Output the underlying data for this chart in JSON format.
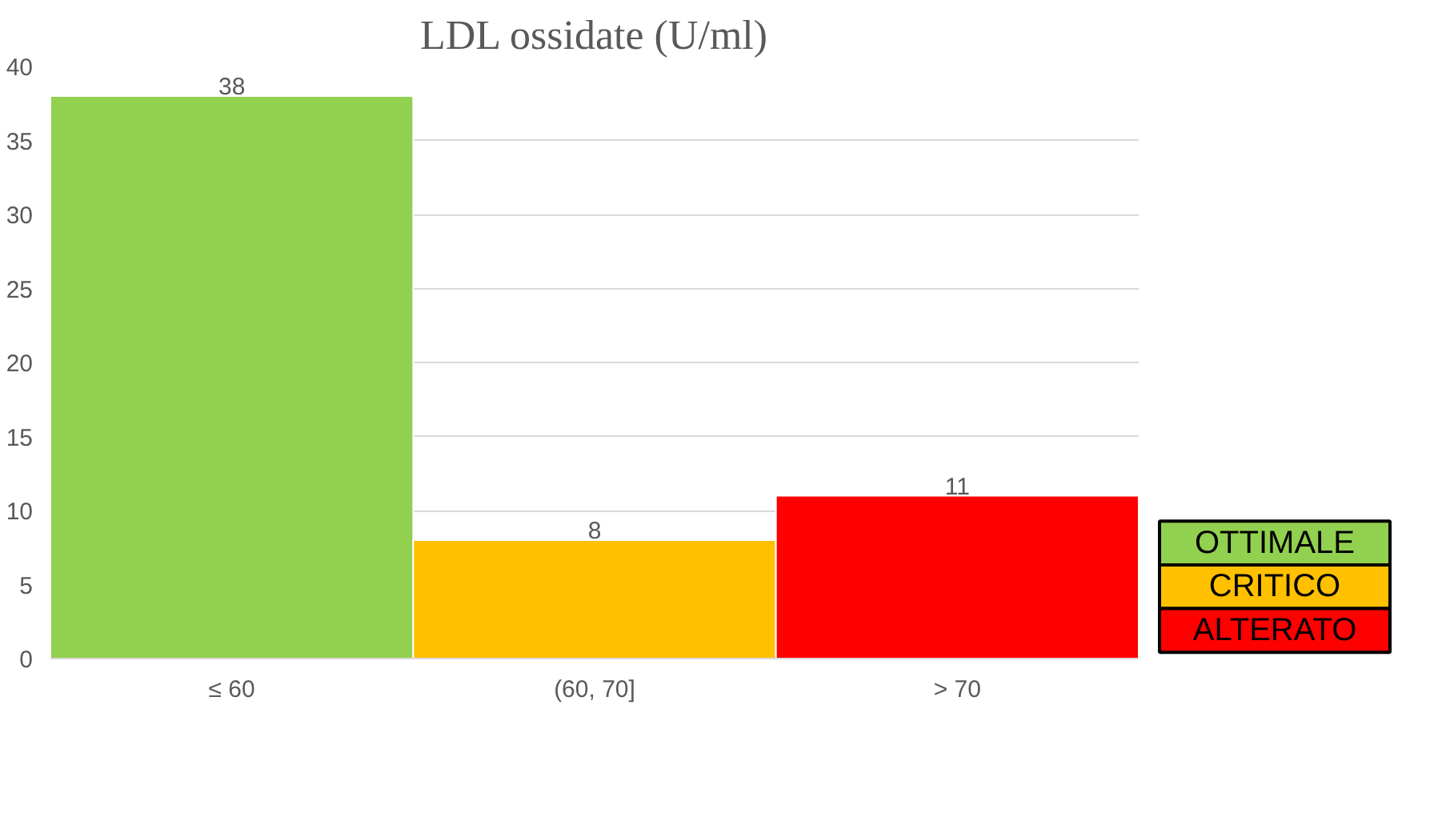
{
  "chart_data": {
    "type": "bar",
    "title": "LDL ossidate (U/ml)",
    "categories": [
      "≤ 60",
      "(60, 70]",
      "> 70"
    ],
    "series": [
      {
        "name": "OTTIMALE",
        "color": "#92d050",
        "values": [
          38,
          null,
          null
        ]
      },
      {
        "name": "CRITICO",
        "color": "#ffc000",
        "values": [
          null,
          8,
          null
        ]
      },
      {
        "name": "ALTERATO",
        "color": "#ff0000",
        "values": [
          null,
          null,
          11
        ]
      }
    ],
    "ylim": [
      0,
      40
    ],
    "yticks": [
      0,
      5,
      10,
      15,
      20,
      25,
      30,
      35,
      40
    ],
    "grid": "y",
    "legend": "bottom right",
    "data_labels": true
  }
}
